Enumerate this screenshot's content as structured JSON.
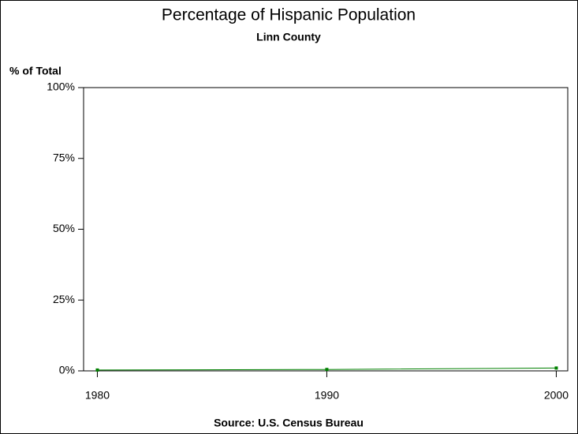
{
  "chart_data": {
    "type": "line",
    "title": "Percentage of Hispanic Population",
    "subtitle": "Linn County",
    "y_label": "% of Total",
    "source": "Source: U.S. Census Bureau",
    "x": [
      1980,
      1990,
      2000
    ],
    "series": [
      {
        "name": "Linn County",
        "color": "#008000",
        "values": [
          0.3,
          0.5,
          1.0
        ]
      }
    ],
    "xlim": [
      1979.4,
      2000.5
    ],
    "xticks": [
      1980,
      1990,
      2000
    ],
    "ylim": [
      0,
      100
    ],
    "yticks": [
      {
        "value": 0,
        "label": "0%"
      },
      {
        "value": 25,
        "label": "25%"
      },
      {
        "value": 50,
        "label": "50%"
      },
      {
        "value": 75,
        "label": "75%"
      },
      {
        "value": 100,
        "label": "100%"
      }
    ],
    "grid": false
  }
}
